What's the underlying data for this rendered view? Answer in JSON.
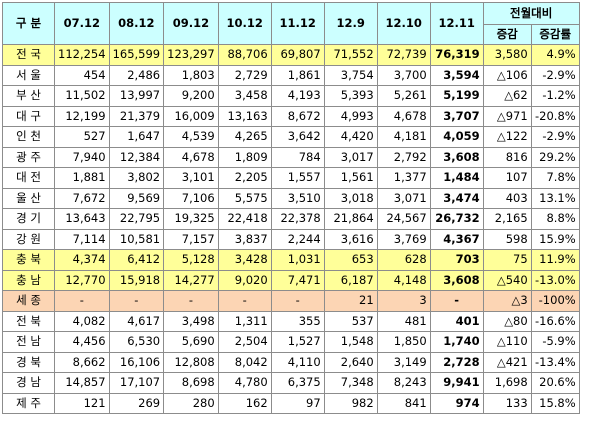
{
  "header": {
    "region_label": "구 분",
    "periods": [
      "07.12",
      "08.12",
      "09.12",
      "10.12",
      "11.12",
      "12.9",
      "12.10",
      "12.11"
    ],
    "compare_label": "전월대비",
    "change_label": "증감",
    "change_rate_label": "증감률"
  },
  "rows": [
    {
      "region": "전 국",
      "values": [
        "112,254",
        "165,599",
        "123,297",
        "88,706",
        "69,807",
        "71,552",
        "72,739",
        "76,319"
      ],
      "change": "3,580",
      "rate": "4.9%"
    },
    {
      "region": "서 울",
      "values": [
        "454",
        "2,486",
        "1,803",
        "2,729",
        "1,861",
        "3,754",
        "3,700",
        "3,594"
      ],
      "change": "△106",
      "rate": "-2.9%"
    },
    {
      "region": "부 산",
      "values": [
        "11,502",
        "13,997",
        "9,200",
        "3,458",
        "4,193",
        "5,393",
        "5,261",
        "5,199"
      ],
      "change": "△62",
      "rate": "-1.2%"
    },
    {
      "region": "대 구",
      "values": [
        "12,199",
        "21,379",
        "16,009",
        "13,163",
        "8,672",
        "4,993",
        "4,678",
        "3,707"
      ],
      "change": "△971",
      "rate": "-20.8%"
    },
    {
      "region": "인 천",
      "values": [
        "527",
        "1,647",
        "4,539",
        "4,265",
        "3,642",
        "4,420",
        "4,181",
        "4,059"
      ],
      "change": "△122",
      "rate": "-2.9%"
    },
    {
      "region": "광 주",
      "values": [
        "7,940",
        "12,384",
        "4,678",
        "1,809",
        "784",
        "3,017",
        "2,792",
        "3,608"
      ],
      "change": "816",
      "rate": "29.2%"
    },
    {
      "region": "대 전",
      "values": [
        "1,881",
        "3,802",
        "3,101",
        "2,205",
        "1,557",
        "1,561",
        "1,377",
        "1,484"
      ],
      "change": "107",
      "rate": "7.8%"
    },
    {
      "region": "울 산",
      "values": [
        "7,672",
        "9,569",
        "7,106",
        "5,575",
        "3,510",
        "3,018",
        "3,071",
        "3,474"
      ],
      "change": "403",
      "rate": "13.1%"
    },
    {
      "region": "경 기",
      "values": [
        "13,643",
        "22,795",
        "19,325",
        "22,418",
        "22,378",
        "21,864",
        "24,567",
        "26,732"
      ],
      "change": "2,165",
      "rate": "8.8%"
    },
    {
      "region": "강 원",
      "values": [
        "7,114",
        "10,581",
        "7,157",
        "3,837",
        "2,244",
        "3,616",
        "3,769",
        "4,367"
      ],
      "change": "598",
      "rate": "15.9%"
    },
    {
      "region": "충 북",
      "values": [
        "4,374",
        "6,412",
        "5,128",
        "3,428",
        "1,031",
        "653",
        "628",
        "703"
      ],
      "change": "75",
      "rate": "11.9%"
    },
    {
      "region": "충 남",
      "values": [
        "12,770",
        "15,918",
        "14,277",
        "9,020",
        "7,471",
        "6,187",
        "4,148",
        "3,608"
      ],
      "change": "△540",
      "rate": "-13.0%"
    },
    {
      "region": "세 종",
      "values": [
        "-",
        "-",
        "-",
        "-",
        "-",
        "21",
        "3",
        "-"
      ],
      "change": "△3",
      "rate": "-100%"
    },
    {
      "region": "전 북",
      "values": [
        "4,082",
        "4,617",
        "3,498",
        "1,311",
        "355",
        "537",
        "481",
        "401"
      ],
      "change": "△80",
      "rate": "-16.6%"
    },
    {
      "region": "전 남",
      "values": [
        "4,456",
        "6,530",
        "5,690",
        "2,504",
        "1,527",
        "1,548",
        "1,850",
        "1,740"
      ],
      "change": "△110",
      "rate": "-5.9%"
    },
    {
      "region": "경 북",
      "values": [
        "8,662",
        "16,106",
        "12,808",
        "8,042",
        "4,110",
        "2,640",
        "3,149",
        "2,728"
      ],
      "change": "△421",
      "rate": "-13.4%"
    },
    {
      "region": "경 남",
      "values": [
        "14,857",
        "17,107",
        "8,698",
        "4,780",
        "6,375",
        "7,348",
        "8,243",
        "9,941"
      ],
      "change": "1,698",
      "rate": "20.6%"
    },
    {
      "region": "제 주",
      "values": [
        "121",
        "269",
        "280",
        "162",
        "97",
        "982",
        "841",
        "974"
      ],
      "change": "133",
      "rate": "15.8%"
    }
  ],
  "styles": {
    "header_bg": "#ccffff",
    "highlight_yellow": "#ffff99",
    "highlight_orange": "#fcd5b4",
    "border": "#8c8c8c"
  }
}
